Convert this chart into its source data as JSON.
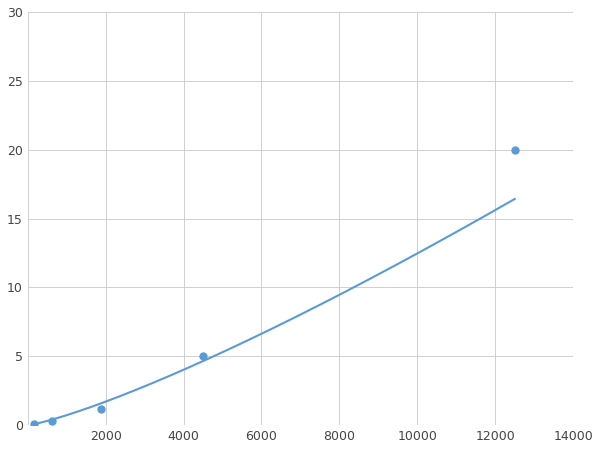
{
  "x": [
    156,
    625,
    1875,
    4500,
    12500
  ],
  "y": [
    0.1,
    0.3,
    1.2,
    5.0,
    20.0
  ],
  "line_color": "#5b9bd5",
  "marker_color": "#5b9bd5",
  "marker_style": "o",
  "marker_size": 5,
  "line_width": 1.5,
  "xlim": [
    0,
    14000
  ],
  "ylim": [
    0,
    30
  ],
  "xticks": [
    0,
    2000,
    4000,
    6000,
    8000,
    10000,
    12000,
    14000
  ],
  "yticks": [
    0,
    5,
    10,
    15,
    20,
    25,
    30
  ],
  "grid_color": "#d0d0d0",
  "background_color": "#ffffff",
  "figsize": [
    6.0,
    4.5
  ],
  "dpi": 100
}
